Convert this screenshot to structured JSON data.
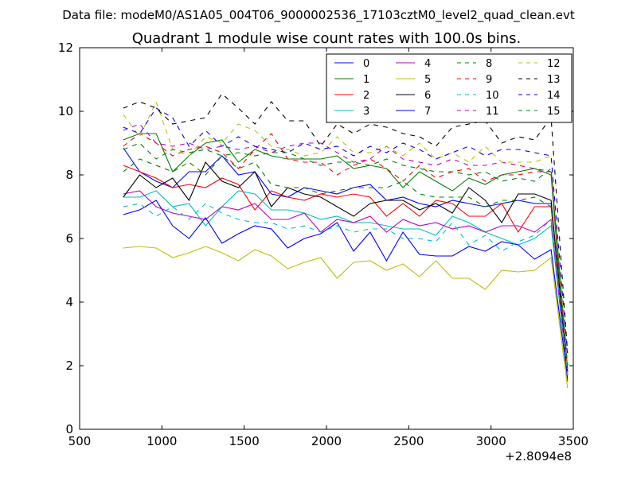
{
  "chart_data": {
    "type": "line",
    "suptitle": "Data file: modeM0/AS1A05_004T06_9000002536_17103cztM0_level2_quad_clean.evt",
    "title": "Quadrant 1 module wise count rates with 100.0s bins.",
    "xlabel": "",
    "ylabel": "",
    "x_offset_label": "+2.8094e8",
    "xlim": [
      500,
      3500
    ],
    "ylim": [
      0,
      12
    ],
    "xticks": [
      500,
      1000,
      1500,
      2000,
      2500,
      3000,
      3500
    ],
    "yticks": [
      0,
      2,
      4,
      6,
      8,
      10,
      12
    ],
    "grid": false,
    "legend_position": "top-right",
    "legend_columns": 4,
    "x": [
      765,
      865,
      965,
      1065,
      1165,
      1265,
      1365,
      1465,
      1565,
      1665,
      1765,
      1865,
      1965,
      2065,
      2165,
      2265,
      2365,
      2465,
      2565,
      2665,
      2765,
      2865,
      2965,
      3065,
      3165,
      3265,
      3365,
      3465
    ],
    "series": [
      {
        "name": "0",
        "color": "#0000ff",
        "dash": "solid",
        "values": [
          8.85,
          8.1,
          7.8,
          7.6,
          8.1,
          8.1,
          8.6,
          8.0,
          8.1,
          7.4,
          7.3,
          7.6,
          7.5,
          7.4,
          7.6,
          7.7,
          7.2,
          7.3,
          7.1,
          7.0,
          7.2,
          7.1,
          7.0,
          7.1,
          7.2,
          7.1,
          7.1,
          2.0
        ]
      },
      {
        "name": "1",
        "color": "#008000",
        "dash": "solid",
        "values": [
          9.1,
          9.3,
          9.3,
          8.1,
          8.6,
          9.0,
          9.1,
          8.4,
          8.8,
          8.6,
          8.5,
          8.5,
          8.5,
          8.6,
          8.2,
          8.3,
          8.2,
          7.6,
          8.1,
          7.8,
          7.5,
          7.9,
          7.7,
          8.0,
          8.1,
          8.2,
          8.0,
          1.5
        ]
      },
      {
        "name": "2",
        "color": "#ff0000",
        "dash": "solid",
        "values": [
          8.3,
          8.1,
          7.9,
          7.6,
          7.7,
          7.6,
          7.9,
          7.7,
          6.9,
          7.5,
          7.3,
          7.2,
          7.4,
          7.3,
          7.4,
          7.3,
          6.7,
          7.1,
          6.7,
          7.2,
          7.1,
          6.7,
          6.7,
          7.1,
          6.2,
          7.0,
          7.0,
          1.8
        ]
      },
      {
        "name": "3",
        "color": "#00bfbf",
        "dash": "solid",
        "values": [
          7.3,
          7.3,
          7.5,
          7.0,
          7.1,
          6.4,
          7.0,
          7.5,
          7.4,
          6.9,
          6.9,
          6.8,
          6.6,
          6.7,
          6.5,
          6.5,
          6.4,
          6.3,
          6.3,
          6.1,
          6.7,
          6.5,
          6.2,
          6.0,
          5.8,
          6.0,
          6.4,
          1.7
        ]
      },
      {
        "name": "4",
        "color": "#bf00bf",
        "dash": "solid",
        "values": [
          7.4,
          7.5,
          7.0,
          6.8,
          6.7,
          6.6,
          7.0,
          6.9,
          7.1,
          6.6,
          6.6,
          6.8,
          6.2,
          6.6,
          6.5,
          6.7,
          6.2,
          6.6,
          6.4,
          6.5,
          6.3,
          6.4,
          6.2,
          6.4,
          6.4,
          6.2,
          6.6,
          1.7
        ]
      },
      {
        "name": "5",
        "color": "#bfbf00",
        "dash": "solid",
        "values": [
          5.7,
          5.75,
          5.7,
          5.4,
          5.55,
          5.75,
          5.55,
          5.3,
          5.65,
          5.45,
          5.05,
          5.25,
          5.4,
          4.75,
          5.25,
          5.3,
          5.0,
          5.2,
          4.8,
          5.3,
          4.75,
          4.75,
          4.4,
          5.0,
          4.95,
          5.0,
          5.4,
          1.3
        ]
      },
      {
        "name": "6",
        "color": "#000000",
        "dash": "solid",
        "values": [
          7.3,
          8.0,
          7.6,
          7.9,
          7.2,
          8.4,
          7.8,
          7.6,
          8.1,
          7.0,
          7.6,
          7.4,
          7.3,
          7.0,
          6.7,
          7.1,
          7.2,
          7.2,
          6.9,
          7.1,
          6.8,
          7.6,
          7.2,
          6.5,
          7.4,
          7.4,
          7.2,
          1.8
        ]
      },
      {
        "name": "7",
        "color": "#0000ff",
        "dash": "solid",
        "values": [
          6.75,
          6.9,
          7.2,
          6.4,
          6.0,
          6.65,
          5.85,
          6.15,
          6.4,
          6.3,
          5.7,
          6.0,
          6.15,
          6.5,
          5.6,
          6.2,
          5.3,
          6.2,
          5.5,
          5.45,
          5.45,
          5.75,
          5.6,
          5.9,
          5.8,
          5.35,
          5.65,
          1.6
        ]
      },
      {
        "name": "8",
        "color": "#008000",
        "dash": "dashed",
        "values": [
          8.1,
          8.5,
          8.3,
          8.1,
          8.4,
          8.0,
          8.6,
          8.2,
          8.4,
          7.7,
          7.6,
          7.6,
          7.4,
          7.5,
          7.6,
          7.6,
          7.6,
          7.8,
          7.4,
          7.3,
          7.3,
          7.3,
          7.0,
          7.2,
          7.2,
          7.3,
          7.0,
          2.0
        ]
      },
      {
        "name": "9",
        "color": "#ff0000",
        "dash": "dashed",
        "values": [
          8.9,
          9.3,
          9.0,
          8.6,
          8.8,
          8.9,
          8.7,
          8.2,
          8.8,
          9.3,
          8.5,
          8.4,
          8.4,
          8.0,
          8.3,
          8.5,
          8.2,
          7.8,
          8.3,
          7.9,
          8.1,
          8.2,
          7.8,
          8.0,
          8.0,
          8.1,
          8.1,
          1.9
        ]
      },
      {
        "name": "10",
        "color": "#00bfbf",
        "dash": "dashed",
        "values": [
          7.0,
          7.1,
          6.7,
          7.0,
          6.6,
          7.1,
          6.8,
          6.6,
          6.5,
          6.5,
          6.3,
          6.4,
          6.2,
          6.4,
          6.2,
          6.3,
          6.3,
          6.0,
          6.0,
          5.9,
          6.5,
          5.8,
          6.1,
          5.6,
          5.9,
          6.1,
          6.6,
          1.7
        ]
      },
      {
        "name": "11",
        "color": "#bf00bf",
        "dash": "dashed",
        "values": [
          9.4,
          9.6,
          9.0,
          8.9,
          9.0,
          8.8,
          8.9,
          8.8,
          8.9,
          8.7,
          8.9,
          9.0,
          9.0,
          8.7,
          8.4,
          8.5,
          8.9,
          8.5,
          8.4,
          8.3,
          8.5,
          8.3,
          8.3,
          8.4,
          8.3,
          8.2,
          8.1,
          1.9
        ]
      },
      {
        "name": "12",
        "color": "#bfbf00",
        "dash": "dashed",
        "values": [
          9.9,
          9.2,
          10.3,
          8.8,
          8.6,
          9.2,
          9.0,
          9.6,
          9.4,
          8.9,
          8.8,
          8.6,
          8.7,
          9.2,
          8.7,
          8.7,
          8.9,
          8.6,
          9.0,
          8.5,
          8.7,
          8.4,
          8.9,
          8.4,
          8.4,
          8.4,
          8.6,
          1.9
        ]
      },
      {
        "name": "13",
        "color": "#000000",
        "dash": "dashed",
        "values": [
          10.1,
          10.3,
          10.1,
          9.6,
          9.7,
          9.8,
          10.55,
          10.1,
          9.6,
          10.3,
          9.7,
          9.7,
          8.9,
          9.6,
          9.3,
          9.6,
          9.5,
          9.3,
          9.2,
          8.9,
          9.5,
          9.6,
          9.7,
          9.0,
          9.2,
          9.1,
          9.8,
          2.4
        ]
      },
      {
        "name": "14",
        "color": "#0000ff",
        "dash": "dashed",
        "values": [
          9.5,
          9.3,
          10.1,
          9.8,
          8.9,
          9.4,
          8.9,
          9.2,
          8.9,
          8.8,
          8.7,
          9.0,
          8.8,
          8.9,
          8.6,
          8.9,
          8.7,
          9.0,
          8.8,
          8.5,
          8.7,
          8.9,
          8.6,
          8.8,
          8.8,
          8.7,
          8.6,
          2.3
        ]
      },
      {
        "name": "15",
        "color": "#008000",
        "dash": "dashed",
        "values": [
          8.8,
          9.0,
          8.5,
          8.8,
          8.7,
          8.8,
          8.6,
          8.7,
          8.6,
          8.7,
          8.7,
          8.5,
          8.3,
          8.4,
          8.4,
          8.3,
          8.5,
          8.3,
          8.2,
          8.1,
          8.1,
          8.0,
          8.1,
          7.8,
          7.9,
          7.8,
          8.2,
          2.0
        ]
      }
    ]
  }
}
